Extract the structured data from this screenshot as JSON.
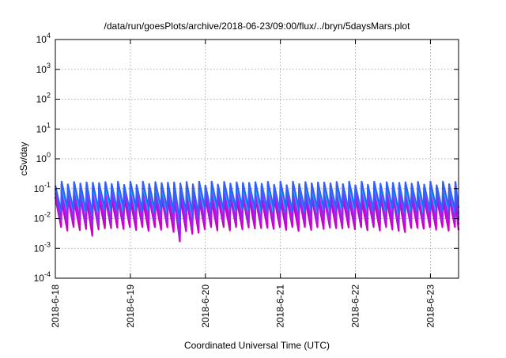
{
  "chart_data": {
    "type": "line",
    "title": "/data/run/goesPlots/archive/2018-06-23/09:00/flux/../bryn/5daysMars.plot",
    "xlabel": "Coordinated Universal Time (UTC)",
    "ylabel": "cSv/day",
    "y_scale": "log",
    "ylim": [
      0.0001,
      10000
    ],
    "y_ticks": [
      {
        "value": 0.0001,
        "base": "10",
        "exp": "-4"
      },
      {
        "value": 0.001,
        "base": "10",
        "exp": "-3"
      },
      {
        "value": 0.01,
        "base": "10",
        "exp": "-2"
      },
      {
        "value": 0.1,
        "base": "10",
        "exp": "-1"
      },
      {
        "value": 1,
        "base": "10",
        "exp": "0"
      },
      {
        "value": 10,
        "base": "10",
        "exp": "1"
      },
      {
        "value": 100,
        "base": "10",
        "exp": "2"
      },
      {
        "value": 1000,
        "base": "10",
        "exp": "3"
      },
      {
        "value": 10000,
        "base": "10",
        "exp": "4"
      }
    ],
    "xlim": [
      "2018-06-18T00:00",
      "2018-06-23T09:00"
    ],
    "x_ticks": [
      "2018-6-18",
      "2018-6-19",
      "2018-6-20",
      "2018-6-21",
      "2018-6-22",
      "2018-6-23"
    ],
    "grid": true,
    "legend": "none",
    "cycle_hours": 2,
    "dips": [
      {
        "day": "2018-06-18",
        "hour": 10,
        "factor": 0.6
      },
      {
        "day": "2018-06-19",
        "hour": 14,
        "factor": 0.35
      },
      {
        "day": "2018-06-19",
        "hour": 19,
        "factor": 0.5
      },
      {
        "day": "2018-06-22",
        "hour": 13,
        "factor": 0.65
      }
    ],
    "series": [
      {
        "color": "#ff0000",
        "peak": 0.12,
        "trough": 0.013
      },
      {
        "color": "#00b050",
        "peak": 0.09,
        "trough": 0.009
      },
      {
        "color": "#00a0a0",
        "peak": 0.085,
        "trough": 0.01
      },
      {
        "color": "#00c8ff",
        "peak": 0.08,
        "trough": 0.012
      },
      {
        "color": "#ff00ff",
        "peak": 0.055,
        "trough": 0.006
      },
      {
        "color": "#cc00cc",
        "peak": 0.045,
        "trough": 0.0045
      },
      {
        "color": "#a020f0",
        "peak": 0.065,
        "trough": 0.008
      },
      {
        "color": "#3060ff",
        "peak": 0.15,
        "trough": 0.02
      }
    ]
  }
}
